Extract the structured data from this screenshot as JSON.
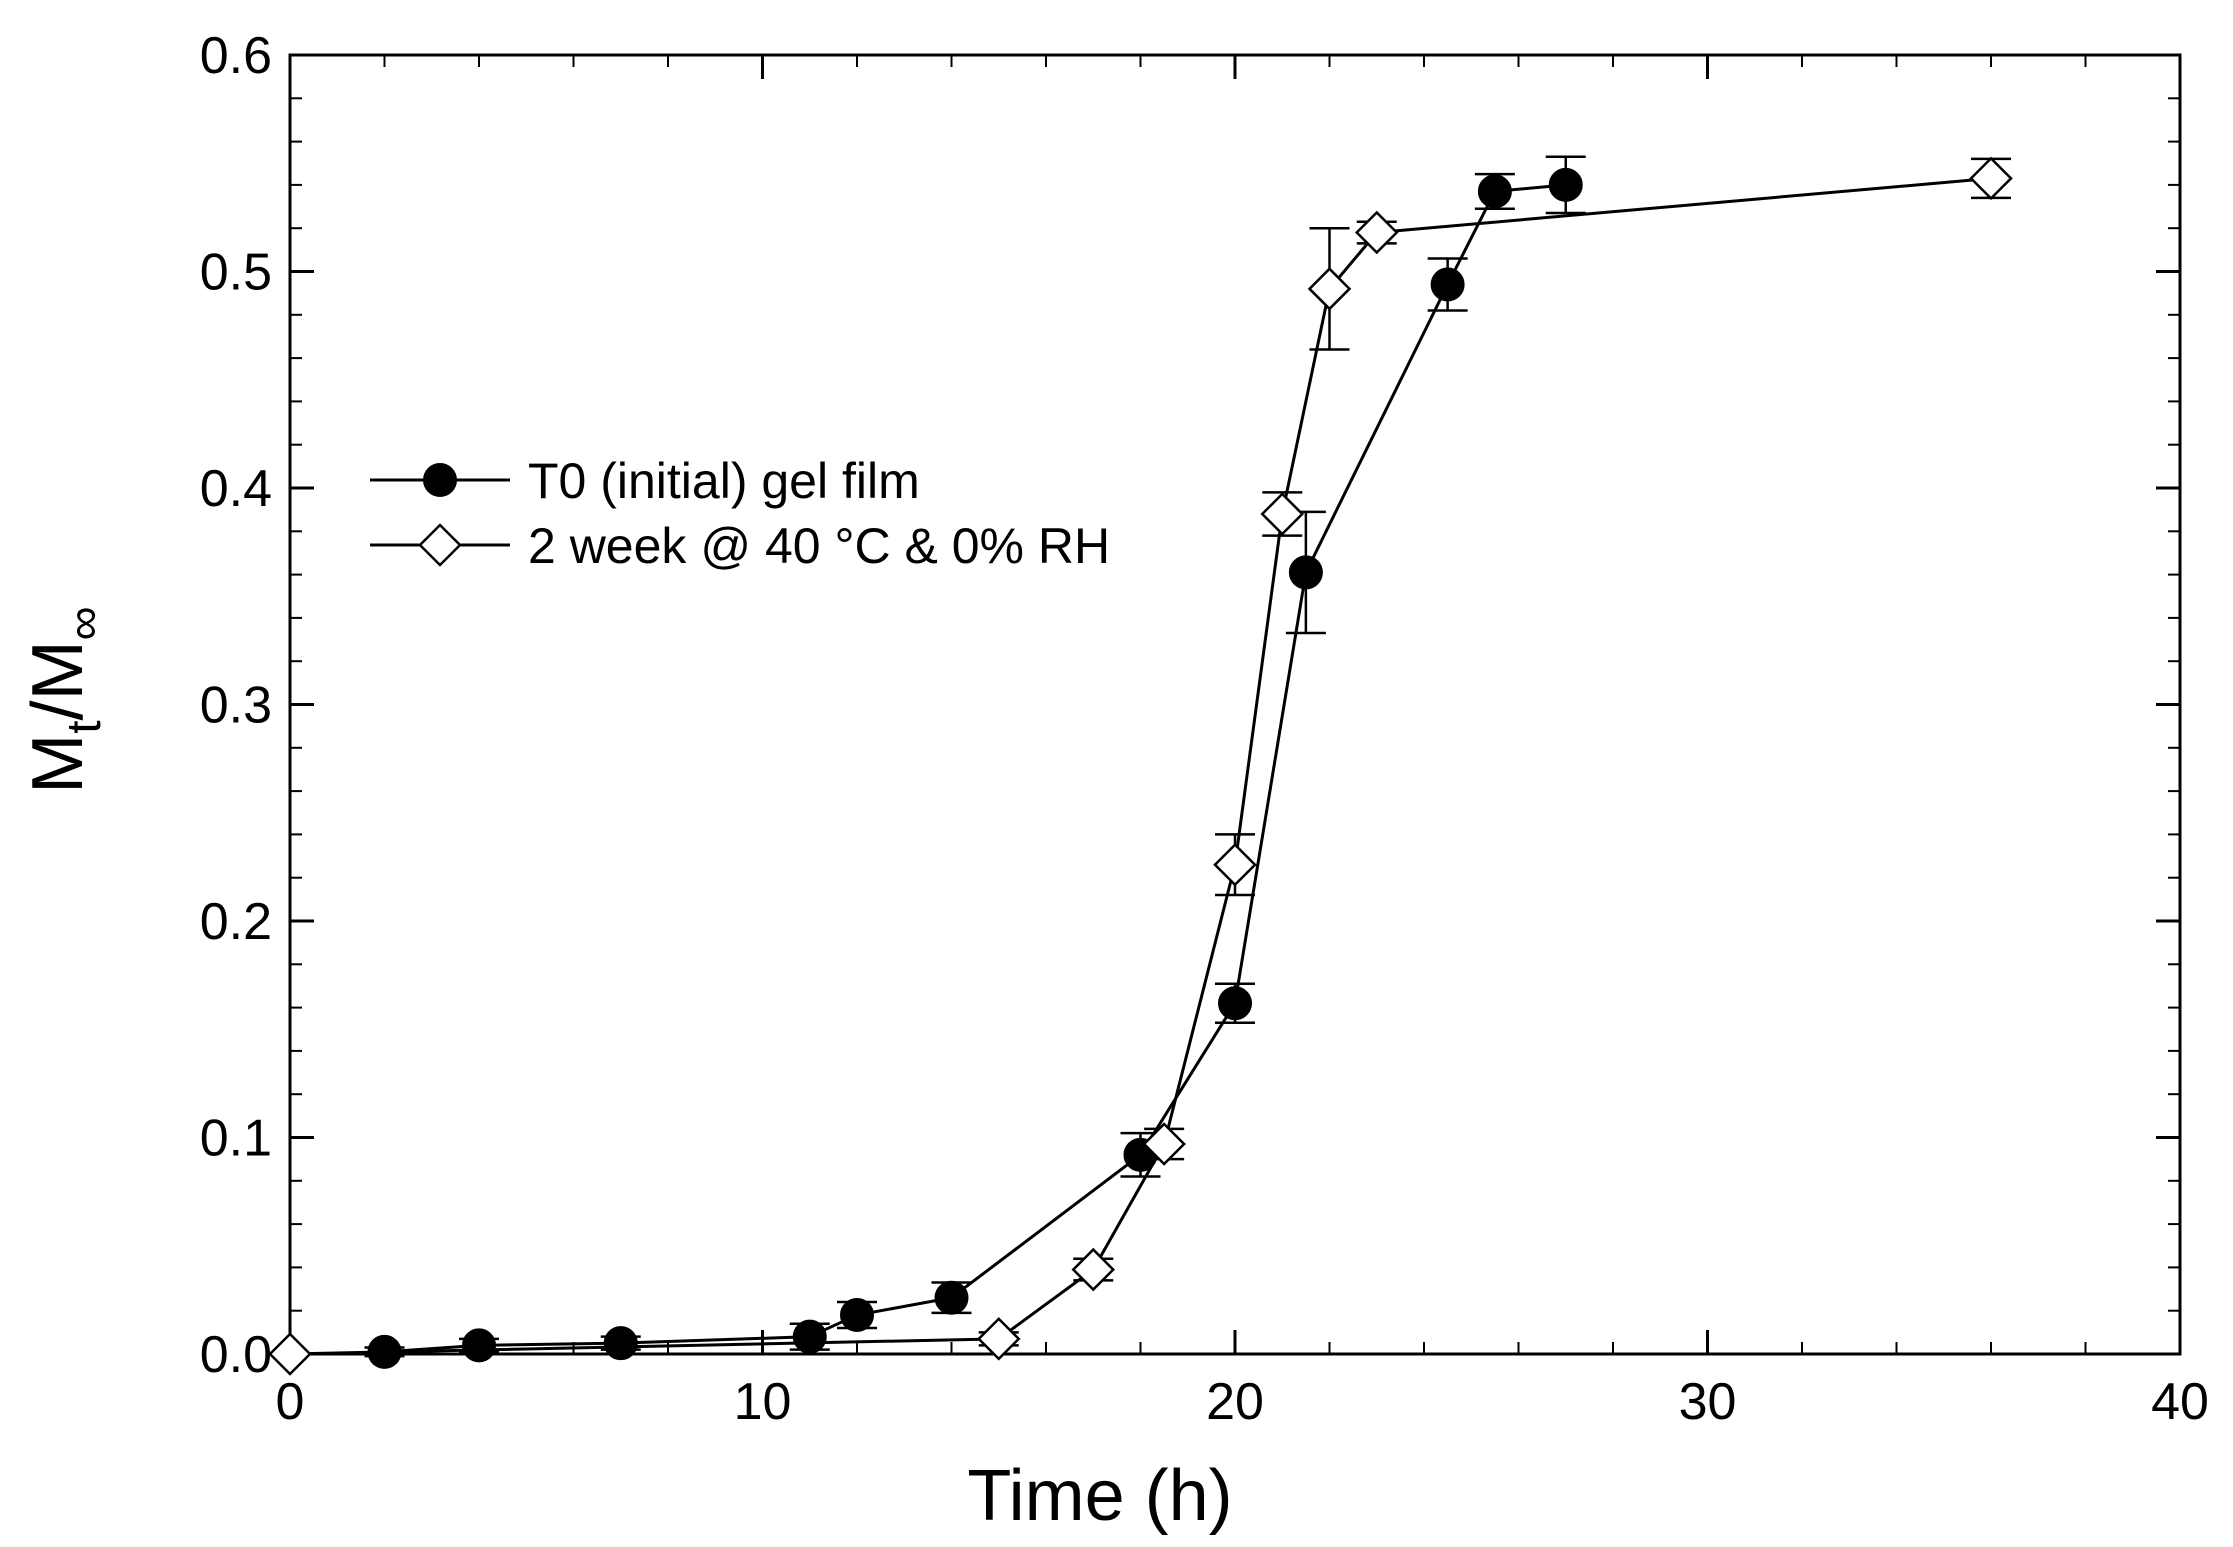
{
  "chart_data": {
    "type": "scatter",
    "title": "",
    "xlabel": "Time (h)",
    "ylabel": {
      "base": "M",
      "sub1": "t",
      "mid": "/M",
      "sub2": "∞"
    },
    "xlim": [
      0,
      40
    ],
    "ylim": [
      0,
      0.6
    ],
    "x_ticks": [
      0,
      10,
      20,
      30,
      40
    ],
    "x_tick_labels": [
      "0",
      "10",
      "20",
      "30",
      "40"
    ],
    "y_ticks": [
      0.0,
      0.1,
      0.2,
      0.3,
      0.4,
      0.5,
      0.6
    ],
    "y_tick_labels": [
      "0.0",
      "0.1",
      "0.2",
      "0.3",
      "0.4",
      "0.5",
      "0.6"
    ],
    "grid": false,
    "legend_position": "upper-left",
    "series": [
      {
        "name": "T0 (initial) gel film",
        "marker": "filled-circle",
        "color": "#000000",
        "x": [
          2,
          4,
          7,
          11,
          12,
          14,
          18,
          20,
          21.5,
          24.5,
          25.5,
          27
        ],
        "y": [
          0.001,
          0.004,
          0.005,
          0.008,
          0.018,
          0.026,
          0.092,
          0.162,
          0.361,
          0.494,
          0.537,
          0.54
        ],
        "error": [
          0.002,
          0.003,
          0.003,
          0.006,
          0.006,
          0.007,
          0.01,
          0.009,
          0.028,
          0.012,
          0.008,
          0.013
        ]
      },
      {
        "name": "2 week @ 40 °C & 0% RH",
        "marker": "open-diamond",
        "color": "#000000",
        "x": [
          0,
          15,
          17,
          18.5,
          20,
          21,
          22,
          23,
          36
        ],
        "y": [
          0.0,
          0.007,
          0.039,
          0.097,
          0.226,
          0.388,
          0.492,
          0.518,
          0.543
        ],
        "error": [
          0.0,
          0.003,
          0.005,
          0.007,
          0.014,
          0.01,
          0.028,
          0.005,
          0.009
        ]
      }
    ]
  }
}
